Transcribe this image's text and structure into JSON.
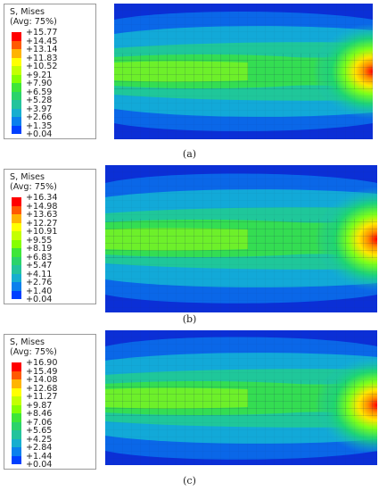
{
  "legend_palette": [
    "#ff0000",
    "#ff5a00",
    "#ffb400",
    "#ffff00",
    "#c4ff00",
    "#86ff00",
    "#3ee639",
    "#2bd36b",
    "#23c39c",
    "#16aecf",
    "#0a80ed",
    "#0040ff",
    "#0000d2"
  ],
  "panels": [
    {
      "title1": "S, Mises",
      "title2": "(Avg: 75%)",
      "levels": [
        "+15.77",
        "+14.45",
        "+13.14",
        "+11.83",
        "+10.52",
        "+9.21",
        "+7.90",
        "+6.59",
        "+5.28",
        "+3.97",
        "+2.66",
        "+1.35",
        "+0.04"
      ],
      "caption": "(a)"
    },
    {
      "title1": "S, Mises",
      "title2": "(Avg: 75%)",
      "levels": [
        "+16.34",
        "+14.98",
        "+13.63",
        "+12.27",
        "+10.91",
        "+9.55",
        "+8.19",
        "+6.83",
        "+5.47",
        "+4.11",
        "+2.76",
        "+1.40",
        "+0.04"
      ],
      "caption": "(b)"
    },
    {
      "title1": "S, Mises",
      "title2": "(Avg: 75%)",
      "levels": [
        "+16.90",
        "+15.49",
        "+14.08",
        "+12.68",
        "+11.27",
        "+9.87",
        "+8.46",
        "+7.06",
        "+5.65",
        "+4.25",
        "+2.84",
        "+1.44",
        "+0.04"
      ],
      "caption": "(c)"
    }
  ]
}
